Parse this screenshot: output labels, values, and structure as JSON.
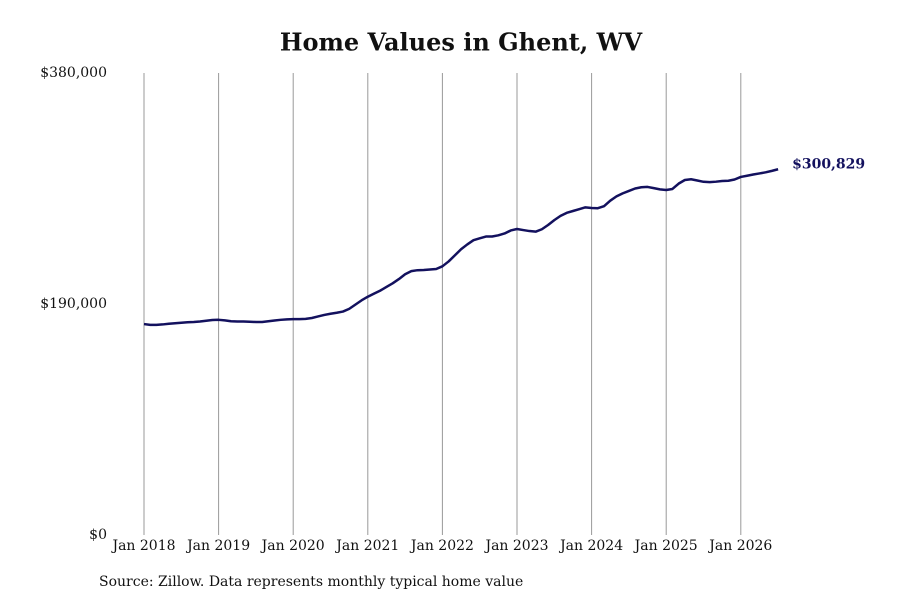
{
  "chart_data": {
    "type": "line",
    "title": "Home Values in Ghent, WV",
    "source": "Source: Zillow. Data represents monthly typical home value",
    "categories": [
      "Jan 2018",
      null,
      null,
      null,
      null,
      null,
      null,
      null,
      null,
      null,
      null,
      null,
      "Jan 2019",
      null,
      null,
      null,
      null,
      null,
      null,
      null,
      null,
      null,
      null,
      null,
      "Jan 2020",
      null,
      null,
      null,
      null,
      null,
      null,
      null,
      null,
      null,
      null,
      null,
      "Jan 2021",
      null,
      null,
      null,
      null,
      null,
      null,
      null,
      null,
      null,
      null,
      null,
      "Jan 2022",
      null,
      null,
      null,
      null,
      null,
      null,
      null,
      null,
      null,
      null,
      null,
      "Jan 2023",
      null,
      null,
      null,
      null,
      null,
      null,
      null,
      null,
      null,
      null,
      null,
      "Jan 2024",
      null,
      null,
      null,
      null,
      null,
      null,
      null,
      null,
      null,
      null,
      null,
      "Jan 2025",
      null,
      null,
      null,
      null,
      null,
      null,
      null,
      null,
      null,
      null,
      null,
      "Jan 2026",
      null,
      null,
      null,
      null,
      null,
      null
    ],
    "series": [
      {
        "color": "#13115e",
        "values": [
          173500,
          172800,
          172800,
          173200,
          173800,
          174200,
          174600,
          175000,
          175200,
          175600,
          176200,
          176800,
          177000,
          176500,
          175800,
          175600,
          175600,
          175400,
          175200,
          175200,
          175800,
          176400,
          177000,
          177400,
          177600,
          177600,
          177800,
          178500,
          179800,
          181000,
          182000,
          182800,
          183800,
          186000,
          189500,
          193000,
          196000,
          198500,
          201000,
          204000,
          207000,
          210500,
          214500,
          217000,
          217800,
          218000,
          218400,
          218800,
          221000,
          225000,
          230000,
          235000,
          239000,
          242500,
          244000,
          245500,
          245500,
          246500,
          248000,
          250500,
          251700,
          250800,
          250000,
          249500,
          251500,
          255000,
          259000,
          262500,
          265000,
          266500,
          268000,
          269500,
          269000,
          268800,
          270500,
          275000,
          278500,
          281000,
          283000,
          285000,
          286000,
          286300,
          285300,
          284300,
          283800,
          284600,
          289000,
          292000,
          292600,
          291600,
          290500,
          290200,
          290600,
          291200,
          291400,
          292400,
          294500,
          295500,
          296500,
          297400,
          298300,
          299500,
          300829
        ],
        "value_labels": [
          null,
          null,
          null,
          null,
          null,
          null,
          null,
          null,
          null,
          null,
          null,
          null,
          null,
          null,
          null,
          null,
          null,
          null,
          null,
          null,
          null,
          null,
          null,
          null,
          null,
          null,
          null,
          null,
          null,
          null,
          null,
          null,
          null,
          null,
          null,
          null,
          null,
          null,
          null,
          null,
          null,
          null,
          null,
          null,
          null,
          null,
          null,
          null,
          null,
          null,
          null,
          null,
          null,
          null,
          null,
          null,
          null,
          null,
          null,
          null,
          null,
          null,
          null,
          null,
          null,
          null,
          null,
          null,
          null,
          null,
          null,
          null,
          null,
          null,
          null,
          null,
          null,
          null,
          null,
          null,
          null,
          null,
          null,
          null,
          null,
          null,
          null,
          null,
          null,
          null,
          null,
          null,
          null,
          null,
          null,
          null,
          null,
          null,
          null,
          null,
          null,
          null,
          "$300,829"
        ]
      }
    ],
    "ylim": [
      0,
      380000
    ],
    "yticks": [
      {
        "value": 0,
        "label": "$0"
      },
      {
        "value": 190000,
        "label": "$190,000"
      },
      {
        "value": 380000,
        "label": "$380,000"
      }
    ],
    "grid": "x"
  }
}
